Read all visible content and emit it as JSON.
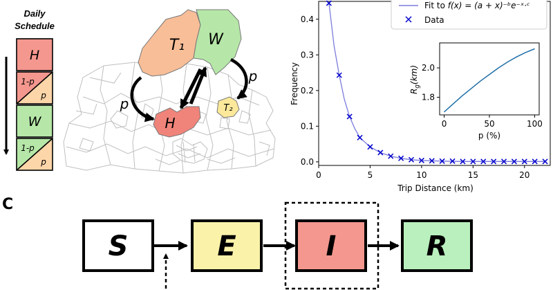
{
  "schedule": {
    "title_line1": "Daily",
    "title_line2": "Schedule",
    "blocks": [
      {
        "label": "H",
        "color": "#f4978e"
      },
      {
        "label_top": "1-p",
        "label_bottom": "p",
        "color_top": "#f4978e",
        "color_bottom": "#fcd5a8"
      },
      {
        "label": "W",
        "color": "#b6e7a8"
      },
      {
        "label_top": "1-p",
        "label_bottom": "p",
        "color_top": "#b6e7a8",
        "color_bottom": "#fcd5a8"
      }
    ]
  },
  "map": {
    "regions": [
      {
        "label": "T₁",
        "color": "#f8be98"
      },
      {
        "label": "W",
        "color": "#b6e7a8"
      },
      {
        "label": "H",
        "color": "#f0847a"
      },
      {
        "label": "T₂",
        "color": "#fbe89a"
      }
    ],
    "arrow_labels": [
      "p",
      "p"
    ],
    "base_color": "#bfbfbf"
  },
  "chart_data": {
    "type": "scatter",
    "xlabel": "Trip Distance (km)",
    "ylabel": "Frequency",
    "xlim": [
      0,
      22.5
    ],
    "ylim": [
      -0.01,
      0.45
    ],
    "xticks": [
      0,
      5,
      10,
      15,
      20
    ],
    "yticks": [
      0.0,
      0.1,
      0.2,
      0.3,
      0.4
    ],
    "series": [
      {
        "name": "Data",
        "marker": "x",
        "color": "#0000cc",
        "x": [
          1,
          2,
          3,
          4,
          5,
          6,
          7,
          8,
          9,
          10,
          11,
          12,
          13,
          14,
          15,
          16,
          17,
          18,
          19,
          20,
          21,
          22
        ],
        "y": [
          0.445,
          0.243,
          0.127,
          0.068,
          0.042,
          0.026,
          0.016,
          0.01,
          0.006,
          0.004,
          0.003,
          0.002,
          0.002,
          0.001,
          0.001,
          0.001,
          0.001,
          0.001,
          0.001,
          0.001,
          0.001,
          0.001
        ]
      },
      {
        "name": "Fit to f(x) = (a + x)⁻ᵇe⁻ˣ·ᶜ",
        "line": true,
        "color": "#7b7bdc",
        "x": [
          1,
          1.5,
          2,
          2.5,
          3,
          3.5,
          4,
          5,
          6,
          7,
          8,
          9,
          10,
          12,
          14,
          16,
          18,
          20,
          22
        ],
        "y": [
          0.445,
          0.325,
          0.243,
          0.175,
          0.127,
          0.094,
          0.068,
          0.042,
          0.026,
          0.016,
          0.01,
          0.006,
          0.004,
          0.002,
          0.001,
          0.001,
          0.001,
          0.001,
          0.001
        ]
      }
    ],
    "legend": {
      "position": "top-right",
      "fit_prefix": "Fit to ",
      "fit_formula": "f(x) = (a + x)⁻ᵇe⁻ˣ·ᶜ",
      "data_label": "Data"
    },
    "inset": {
      "type": "line",
      "xlabel": "p (%)",
      "ylabel": "R_g(km)",
      "xlim": [
        -5,
        105
      ],
      "ylim": [
        1.68,
        2.17
      ],
      "xticks": [
        0,
        50,
        100
      ],
      "yticks": [
        1.8,
        2.0
      ],
      "color": "#1f6fa8",
      "x": [
        0,
        10,
        20,
        30,
        40,
        50,
        60,
        70,
        80,
        90,
        100
      ],
      "y": [
        1.7,
        1.755,
        1.81,
        1.86,
        1.91,
        1.955,
        2.0,
        2.04,
        2.075,
        2.105,
        2.13
      ]
    }
  },
  "panel_c": {
    "letter": "C",
    "boxes": [
      {
        "label": "S",
        "color": "#ffffff"
      },
      {
        "label": "E",
        "color": "#fbf2aa"
      },
      {
        "label": "I",
        "color": "#f4978e"
      },
      {
        "label": "R",
        "color": "#b9f0bd"
      }
    ]
  }
}
